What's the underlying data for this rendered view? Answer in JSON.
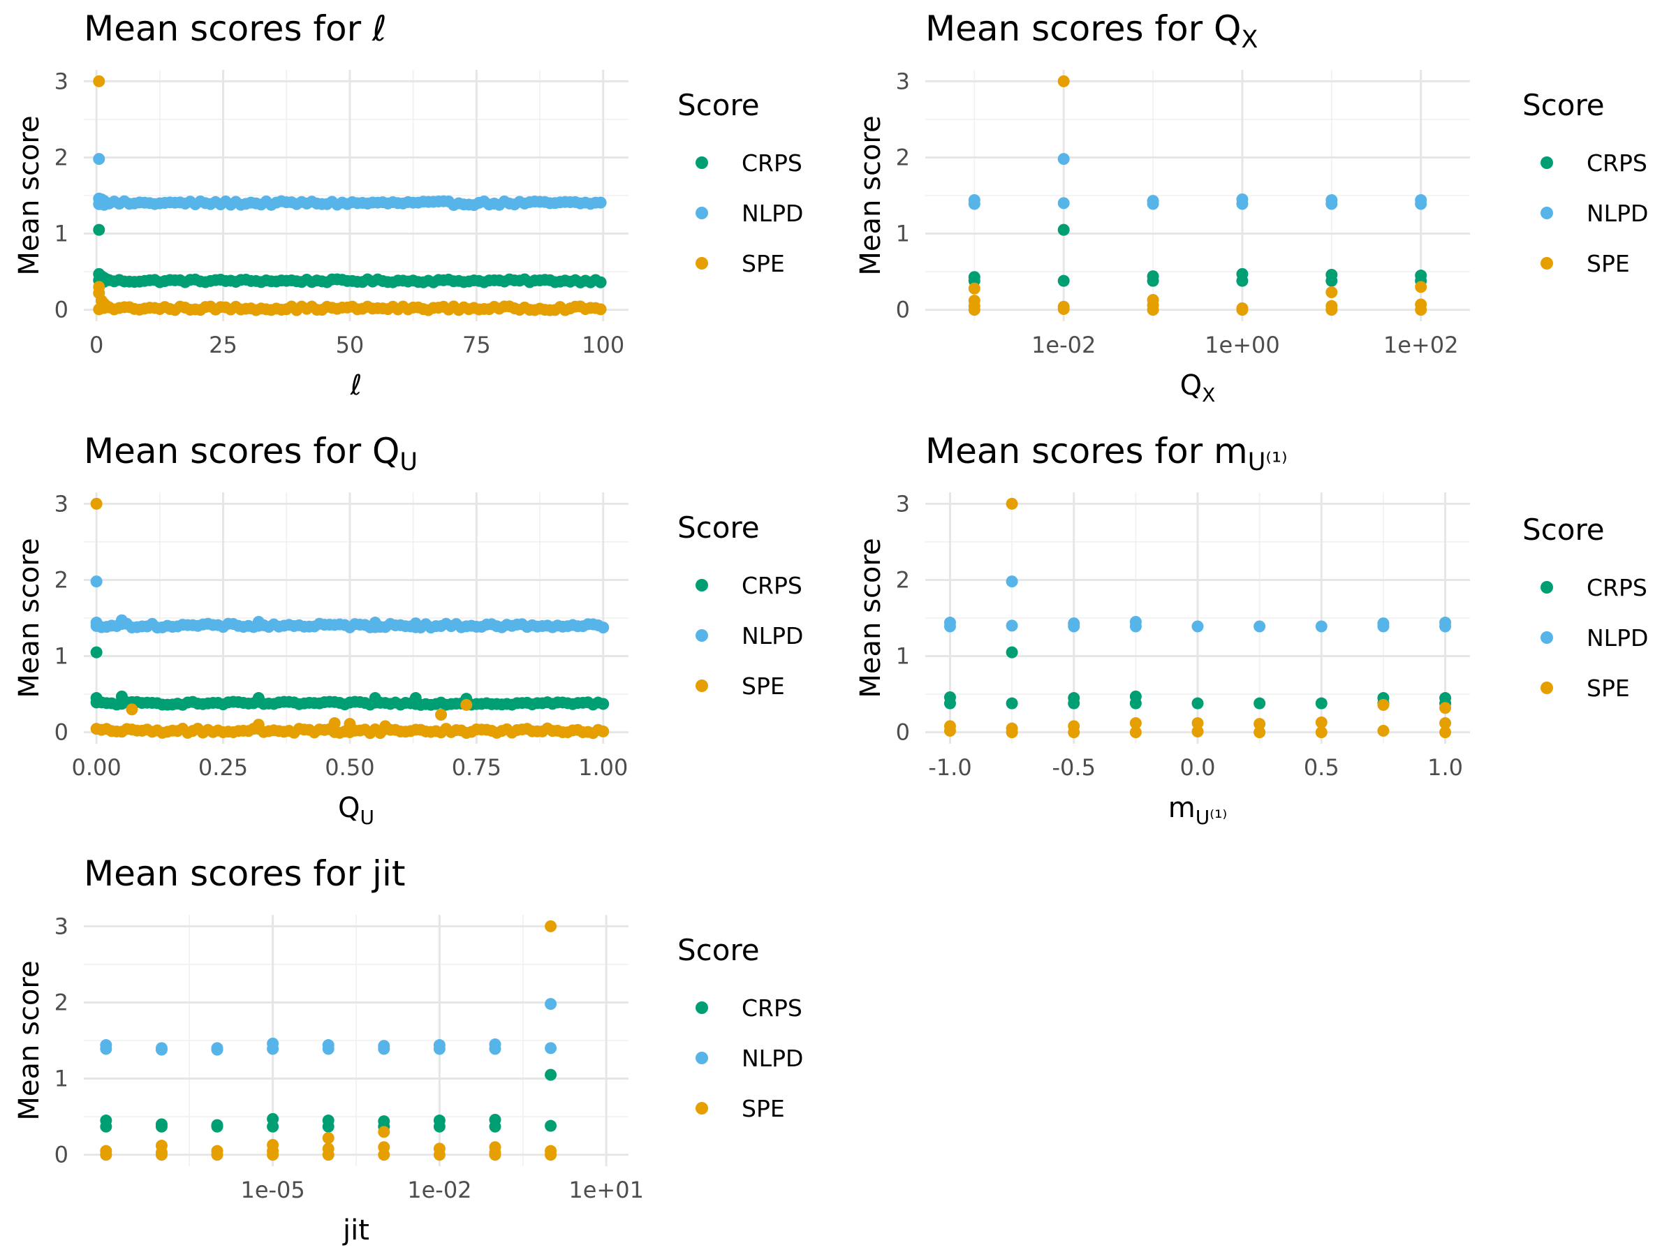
{
  "colors": {
    "CRPS": "#009E73",
    "NLPD": "#56B4E9",
    "SPE": "#E69F00"
  },
  "chart_data": [
    {
      "type": "scatter",
      "title": "Mean scores for ℓ",
      "xlabel": "ℓ",
      "ylabel": "Mean score",
      "xscale": "linear",
      "xlim": [
        -2.5,
        105
      ],
      "ylim": [
        -0.15,
        3.15
      ],
      "xticks": [
        0,
        25,
        50,
        75,
        100
      ],
      "xtick_labels": [
        "0",
        "25",
        "50",
        "75",
        "100"
      ],
      "yticks": [
        0,
        1,
        2,
        3
      ],
      "ytick_labels": [
        "0",
        "1",
        "2",
        "3"
      ],
      "grid": true,
      "legend": {
        "title": "Score",
        "position": "right",
        "entries": [
          "CRPS",
          "NLPD",
          "SPE"
        ]
      },
      "dense_x": {
        "from": 0.5,
        "to": 100,
        "step": 1
      },
      "dense_series": [
        {
          "name": "CRPS",
          "base": 0.38,
          "jitter": 0.02
        },
        {
          "name": "NLPD",
          "base": 1.4,
          "jitter": 0.025
        },
        {
          "name": "SPE",
          "base": 0.02,
          "jitter": 0.025
        }
      ],
      "series": [
        {
          "name": "CRPS",
          "points": [
            [
              0.5,
              1.05
            ],
            [
              0.5,
              0.47
            ],
            [
              1,
              0.44
            ],
            [
              1.5,
              0.42
            ],
            [
              2,
              0.4
            ]
          ]
        },
        {
          "name": "NLPD",
          "points": [
            [
              0.5,
              1.98
            ],
            [
              0.5,
              1.46
            ],
            [
              1,
              1.45
            ],
            [
              1.5,
              1.43
            ]
          ]
        },
        {
          "name": "SPE",
          "points": [
            [
              0.5,
              3.0
            ],
            [
              0.5,
              0.3
            ],
            [
              0.5,
              0.22
            ],
            [
              1,
              0.12
            ],
            [
              1.5,
              0.08
            ],
            [
              2,
              0.05
            ]
          ]
        }
      ]
    },
    {
      "type": "scatter",
      "title": "Mean scores for Q",
      "title_sub": "X",
      "xlabel": "Q",
      "xlabel_sub": "X",
      "ylabel": "Mean score",
      "xscale": "log10",
      "xlim": [
        -3.55,
        2.55
      ],
      "ylim": [
        -0.15,
        3.15
      ],
      "xticks": [
        -2,
        0,
        2
      ],
      "xtick_labels": [
        "1e-02",
        "1e+00",
        "1e+02"
      ],
      "xminor": [
        -3,
        -1,
        1
      ],
      "yticks": [
        0,
        1,
        2,
        3
      ],
      "ytick_labels": [
        "0",
        "1",
        "2",
        "3"
      ],
      "grid": true,
      "legend": {
        "title": "Score",
        "position": "right",
        "entries": [
          "CRPS",
          "NLPD",
          "SPE"
        ]
      },
      "series": [
        {
          "name": "CRPS",
          "points": [
            [
              -3,
              0.43
            ],
            [
              -3,
              0.38
            ],
            [
              -2,
              1.05
            ],
            [
              -2,
              0.38
            ],
            [
              -1,
              0.44
            ],
            [
              -1,
              0.38
            ],
            [
              0,
              0.47
            ],
            [
              0,
              0.38
            ],
            [
              1,
              0.46
            ],
            [
              1,
              0.38
            ],
            [
              2,
              0.45
            ],
            [
              2,
              0.38
            ]
          ]
        },
        {
          "name": "NLPD",
          "points": [
            [
              -3,
              1.44
            ],
            [
              -3,
              1.39
            ],
            [
              -2,
              1.98
            ],
            [
              -2,
              1.4
            ],
            [
              -1,
              1.43
            ],
            [
              -1,
              1.39
            ],
            [
              0,
              1.45
            ],
            [
              0,
              1.39
            ],
            [
              1,
              1.44
            ],
            [
              1,
              1.39
            ],
            [
              2,
              1.44
            ],
            [
              2,
              1.39
            ]
          ]
        },
        {
          "name": "SPE",
          "points": [
            [
              -3,
              0.28
            ],
            [
              -3,
              0.12
            ],
            [
              -3,
              0.05
            ],
            [
              -3,
              0.0
            ],
            [
              -2,
              3.0
            ],
            [
              -2,
              0.04
            ],
            [
              -2,
              0.01
            ],
            [
              -1,
              0.13
            ],
            [
              -1,
              0.06
            ],
            [
              -1,
              0.0
            ],
            [
              0,
              0.02
            ],
            [
              0,
              0.0
            ],
            [
              1,
              0.23
            ],
            [
              1,
              0.05
            ],
            [
              1,
              0.0
            ],
            [
              2,
              0.3
            ],
            [
              2,
              0.07
            ],
            [
              2,
              0.0
            ]
          ]
        }
      ]
    },
    {
      "type": "scatter",
      "title": "Mean scores for Q",
      "title_sub": "U",
      "xlabel": "Q",
      "xlabel_sub": "U",
      "ylabel": "Mean score",
      "xscale": "linear",
      "xlim": [
        -0.025,
        1.05
      ],
      "ylim": [
        -0.15,
        3.15
      ],
      "xticks": [
        0,
        0.25,
        0.5,
        0.75,
        1
      ],
      "xtick_labels": [
        "0.00",
        "0.25",
        "0.50",
        "0.75",
        "1.00"
      ],
      "yticks": [
        0,
        1,
        2,
        3
      ],
      "ytick_labels": [
        "0",
        "1",
        "2",
        "3"
      ],
      "grid": true,
      "legend": {
        "title": "Score",
        "position": "right",
        "entries": [
          "CRPS",
          "NLPD",
          "SPE"
        ]
      },
      "dense_x": {
        "from": 0,
        "to": 1,
        "step": 0.01
      },
      "dense_series": [
        {
          "name": "CRPS",
          "base": 0.38,
          "jitter": 0.02
        },
        {
          "name": "NLPD",
          "base": 1.4,
          "jitter": 0.025
        },
        {
          "name": "SPE",
          "base": 0.02,
          "jitter": 0.03
        }
      ],
      "series": [
        {
          "name": "CRPS",
          "points": [
            [
              0,
              1.05
            ],
            [
              0,
              0.45
            ],
            [
              0.05,
              0.47
            ],
            [
              0.32,
              0.45
            ],
            [
              0.55,
              0.45
            ],
            [
              0.63,
              0.45
            ],
            [
              0.73,
              0.44
            ]
          ]
        },
        {
          "name": "NLPD",
          "points": [
            [
              0,
              1.98
            ],
            [
              0,
              1.44
            ],
            [
              0.05,
              1.47
            ],
            [
              0.32,
              1.45
            ],
            [
              0.55,
              1.44
            ],
            [
              0.63,
              1.43
            ]
          ]
        },
        {
          "name": "SPE",
          "points": [
            [
              0,
              3.0
            ],
            [
              0.07,
              0.3
            ],
            [
              0.32,
              0.1
            ],
            [
              0.47,
              0.12
            ],
            [
              0.5,
              0.11
            ],
            [
              0.57,
              0.08
            ],
            [
              0.68,
              0.23
            ],
            [
              0.73,
              0.36
            ]
          ]
        }
      ]
    },
    {
      "type": "scatter",
      "title": "Mean scores for m",
      "title_sub": "U⁽¹⁾",
      "xlabel": "m",
      "xlabel_sub": "U⁽¹⁾",
      "ylabel": "Mean score",
      "xscale": "linear",
      "xlim": [
        -1.1,
        1.1
      ],
      "ylim": [
        -0.15,
        3.15
      ],
      "xticks": [
        -1,
        -0.5,
        0,
        0.5,
        1
      ],
      "xtick_labels": [
        "-1.0",
        "-0.5",
        "0.0",
        "0.5",
        "1.0"
      ],
      "xminor": [
        -0.75,
        -0.25,
        0.25,
        0.75
      ],
      "yticks": [
        0,
        1,
        2,
        3
      ],
      "ytick_labels": [
        "0",
        "1",
        "2",
        "3"
      ],
      "grid": true,
      "legend": {
        "title": "Score",
        "position": "right",
        "entries": [
          "CRPS",
          "NLPD",
          "SPE"
        ]
      },
      "series": [
        {
          "name": "CRPS",
          "points": [
            [
              -1,
              0.46
            ],
            [
              -1,
              0.38
            ],
            [
              -0.75,
              1.05
            ],
            [
              -0.75,
              0.38
            ],
            [
              -0.5,
              0.45
            ],
            [
              -0.5,
              0.38
            ],
            [
              -0.25,
              0.47
            ],
            [
              -0.25,
              0.38
            ],
            [
              0,
              0.38
            ],
            [
              0.25,
              0.38
            ],
            [
              0.5,
              0.38
            ],
            [
              0.75,
              0.45
            ],
            [
              0.75,
              0.38
            ],
            [
              1,
              0.45
            ],
            [
              1,
              0.38
            ]
          ]
        },
        {
          "name": "NLPD",
          "points": [
            [
              -1,
              1.44
            ],
            [
              -1,
              1.39
            ],
            [
              -0.75,
              1.98
            ],
            [
              -0.75,
              1.4
            ],
            [
              -0.5,
              1.43
            ],
            [
              -0.5,
              1.39
            ],
            [
              -0.25,
              1.45
            ],
            [
              -0.25,
              1.39
            ],
            [
              0,
              1.39
            ],
            [
              0.25,
              1.39
            ],
            [
              0.5,
              1.39
            ],
            [
              0.75,
              1.43
            ],
            [
              0.75,
              1.39
            ],
            [
              1,
              1.44
            ],
            [
              1,
              1.39
            ]
          ]
        },
        {
          "name": "SPE",
          "points": [
            [
              -1,
              0.08
            ],
            [
              -1,
              0.02
            ],
            [
              -0.75,
              3.0
            ],
            [
              -0.75,
              0.05
            ],
            [
              -0.75,
              0.0
            ],
            [
              -0.5,
              0.08
            ],
            [
              -0.5,
              0.0
            ],
            [
              -0.25,
              0.12
            ],
            [
              -0.25,
              0.0
            ],
            [
              0,
              0.12
            ],
            [
              0,
              0.01
            ],
            [
              0.25,
              0.11
            ],
            [
              0.25,
              0.0
            ],
            [
              0.5,
              0.13
            ],
            [
              0.5,
              0.0
            ],
            [
              0.75,
              0.36
            ],
            [
              0.75,
              0.02
            ],
            [
              1,
              0.32
            ],
            [
              1,
              0.12
            ],
            [
              1,
              0.0
            ]
          ]
        }
      ]
    },
    {
      "type": "scatter",
      "title": "Mean scores for jit",
      "xlabel": "jit",
      "ylabel": "Mean score",
      "xscale": "log10",
      "xlim": [
        -8.4,
        1.4
      ],
      "ylim": [
        -0.15,
        3.15
      ],
      "xticks": [
        -5,
        -2,
        1
      ],
      "xtick_labels": [
        "1e-05",
        "1e-02",
        "1e+01"
      ],
      "xminor": [
        -6.5,
        -3.5,
        -0.5
      ],
      "yticks": [
        0,
        1,
        2,
        3
      ],
      "ytick_labels": [
        "0",
        "1",
        "2",
        "3"
      ],
      "grid": true,
      "legend": {
        "title": "Score",
        "position": "right",
        "entries": [
          "CRPS",
          "NLPD",
          "SPE"
        ]
      },
      "series": [
        {
          "name": "CRPS",
          "points": [
            [
              -8,
              0.45
            ],
            [
              -8,
              0.37
            ],
            [
              -7,
              0.4
            ],
            [
              -7,
              0.37
            ],
            [
              -6,
              0.39
            ],
            [
              -6,
              0.37
            ],
            [
              -5,
              0.47
            ],
            [
              -5,
              0.37
            ],
            [
              -4,
              0.45
            ],
            [
              -4,
              0.37
            ],
            [
              -3,
              0.44
            ],
            [
              -3,
              0.37
            ],
            [
              -2,
              0.45
            ],
            [
              -2,
              0.37
            ],
            [
              -1,
              0.46
            ],
            [
              -1,
              0.37
            ],
            [
              0,
              1.05
            ],
            [
              0,
              0.38
            ]
          ]
        },
        {
          "name": "NLPD",
          "points": [
            [
              -8,
              1.44
            ],
            [
              -8,
              1.39
            ],
            [
              -7,
              1.4
            ],
            [
              -7,
              1.38
            ],
            [
              -6,
              1.4
            ],
            [
              -6,
              1.38
            ],
            [
              -5,
              1.46
            ],
            [
              -5,
              1.39
            ],
            [
              -4,
              1.44
            ],
            [
              -4,
              1.39
            ],
            [
              -3,
              1.43
            ],
            [
              -3,
              1.39
            ],
            [
              -2,
              1.44
            ],
            [
              -2,
              1.39
            ],
            [
              -1,
              1.45
            ],
            [
              -1,
              1.39
            ],
            [
              0,
              1.98
            ],
            [
              0,
              1.4
            ]
          ]
        },
        {
          "name": "SPE",
          "points": [
            [
              -8,
              0.05
            ],
            [
              -8,
              0.0
            ],
            [
              -7,
              0.12
            ],
            [
              -7,
              0.03
            ],
            [
              -7,
              0.0
            ],
            [
              -6,
              0.05
            ],
            [
              -6,
              0.0
            ],
            [
              -5,
              0.13
            ],
            [
              -5,
              0.05
            ],
            [
              -5,
              0.0
            ],
            [
              -4,
              0.22
            ],
            [
              -4,
              0.08
            ],
            [
              -4,
              0.0
            ],
            [
              -3,
              0.3
            ],
            [
              -3,
              0.1
            ],
            [
              -3,
              0.0
            ],
            [
              -2,
              0.08
            ],
            [
              -2,
              0.0
            ],
            [
              -1,
              0.1
            ],
            [
              -1,
              0.03
            ],
            [
              -1,
              0.0
            ],
            [
              0,
              3.0
            ],
            [
              0,
              0.05
            ],
            [
              0,
              0.0
            ]
          ]
        }
      ]
    }
  ]
}
